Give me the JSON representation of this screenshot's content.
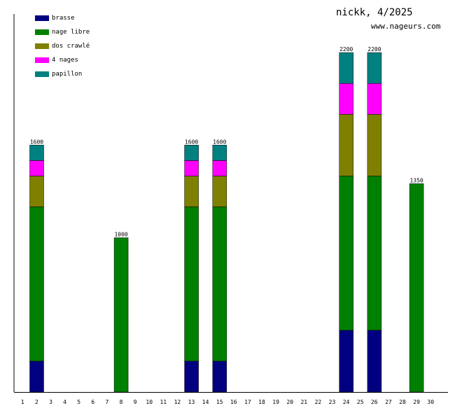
{
  "header": {
    "title": "nickk, 4/2025",
    "site": "www.nageurs.com"
  },
  "chart_data": {
    "type": "bar",
    "stacked": true,
    "legend_position": "top-left",
    "grid": false,
    "categories": [
      "1",
      "2",
      "3",
      "4",
      "5",
      "6",
      "7",
      "8",
      "9",
      "10",
      "11",
      "12",
      "13",
      "14",
      "15",
      "16",
      "17",
      "18",
      "19",
      "20",
      "21",
      "22",
      "23",
      "24",
      "25",
      "26",
      "27",
      "28",
      "29",
      "30"
    ],
    "ylim": [
      0,
      2450
    ],
    "series": [
      {
        "name": "brasse",
        "color": "#000080",
        "values": [
          0,
          200,
          0,
          0,
          0,
          0,
          0,
          0,
          0,
          0,
          0,
          0,
          200,
          0,
          200,
          0,
          0,
          0,
          0,
          0,
          0,
          0,
          0,
          400,
          0,
          400,
          0,
          0,
          0,
          0
        ]
      },
      {
        "name": "nage libre",
        "color": "#008000",
        "values": [
          0,
          1000,
          0,
          0,
          0,
          0,
          0,
          1000,
          0,
          0,
          0,
          0,
          1000,
          0,
          1000,
          0,
          0,
          0,
          0,
          0,
          0,
          0,
          0,
          1000,
          0,
          1000,
          0,
          0,
          1350,
          0
        ]
      },
      {
        "name": "dos crawlé",
        "color": "#808000",
        "values": [
          0,
          200,
          0,
          0,
          0,
          0,
          0,
          0,
          0,
          0,
          0,
          0,
          200,
          0,
          200,
          0,
          0,
          0,
          0,
          0,
          0,
          0,
          0,
          400,
          0,
          400,
          0,
          0,
          0,
          0
        ]
      },
      {
        "name": "4 nages",
        "color": "#ff00ff",
        "values": [
          0,
          100,
          0,
          0,
          0,
          0,
          0,
          0,
          0,
          0,
          0,
          0,
          100,
          0,
          100,
          0,
          0,
          0,
          0,
          0,
          0,
          0,
          0,
          200,
          0,
          200,
          0,
          0,
          0,
          0
        ]
      },
      {
        "name": "papillon",
        "color": "#008080",
        "values": [
          0,
          100,
          0,
          0,
          0,
          0,
          0,
          0,
          0,
          0,
          0,
          0,
          100,
          0,
          100,
          0,
          0,
          0,
          0,
          0,
          0,
          0,
          0,
          200,
          0,
          200,
          0,
          0,
          0,
          0
        ]
      }
    ],
    "totals": [
      "",
      "1600",
      "",
      "",
      "",
      "",
      "",
      "1000",
      "",
      "",
      "",
      "",
      "1600",
      "",
      "1600",
      "",
      "",
      "",
      "",
      "",
      "",
      "",
      "",
      "2200",
      "",
      "2200",
      "",
      "",
      "1350",
      ""
    ]
  }
}
